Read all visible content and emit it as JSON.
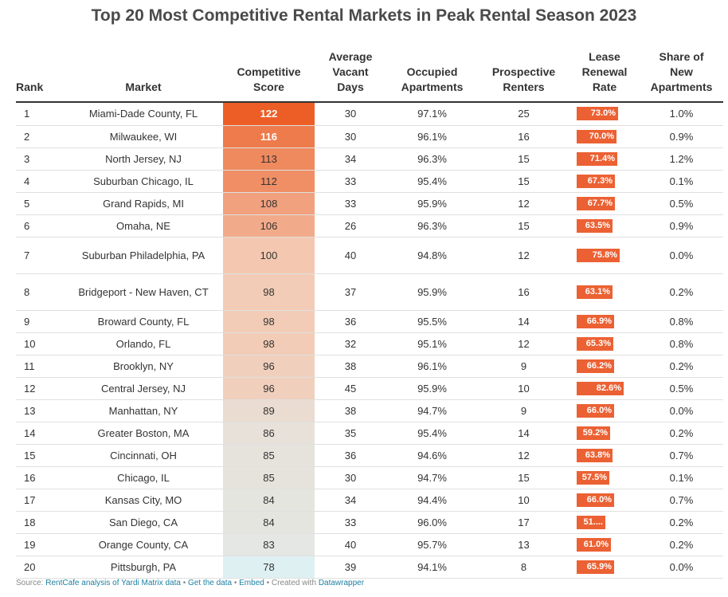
{
  "title": "Top 20 Most Competitive Rental Markets in Peak Rental Season 2023",
  "columns": {
    "rank": "Rank",
    "market": "Market",
    "score": [
      "Competitive",
      "Score"
    ],
    "vacant": [
      "Average",
      "Vacant",
      "Days"
    ],
    "occupied": [
      "Occupied",
      "Apartments"
    ],
    "renters": [
      "Prospective",
      "Renters"
    ],
    "renewal": [
      "Lease",
      "Renewal",
      "Rate"
    ],
    "share": [
      "Share of",
      "New",
      "Apartments"
    ]
  },
  "colors": {
    "renewal_bar": "#ec6133",
    "score_high": "#ec5e26",
    "score_low": "#dff0f2"
  },
  "chart_data": {
    "type": "table",
    "title": "Top 20 Most Competitive Rental Markets in Peak Rental Season 2023",
    "rows": [
      {
        "rank": "1",
        "market": "Miami-Dade County, FL",
        "score": 122,
        "vacant_days": "30",
        "occupied": "97.1%",
        "renters": "25",
        "renewal": 73.0,
        "renewal_label": "73.0%",
        "share": "1.0%"
      },
      {
        "rank": "2",
        "market": "Milwaukee, WI",
        "score": 116,
        "vacant_days": "30",
        "occupied": "96.1%",
        "renters": "16",
        "renewal": 70.0,
        "renewal_label": "70.0%",
        "share": "0.9%"
      },
      {
        "rank": "3",
        "market": "North Jersey, NJ",
        "score": 113,
        "vacant_days": "34",
        "occupied": "96.3%",
        "renters": "15",
        "renewal": 71.4,
        "renewal_label": "71.4%",
        "share": "1.2%"
      },
      {
        "rank": "4",
        "market": "Suburban Chicago, IL",
        "score": 112,
        "vacant_days": "33",
        "occupied": "95.4%",
        "renters": "15",
        "renewal": 67.3,
        "renewal_label": "67.3%",
        "share": "0.1%"
      },
      {
        "rank": "5",
        "market": "Grand Rapids, MI",
        "score": 108,
        "vacant_days": "33",
        "occupied": "95.9%",
        "renters": "12",
        "renewal": 67.7,
        "renewal_label": "67.7%",
        "share": "0.5%"
      },
      {
        "rank": "6",
        "market": "Omaha, NE",
        "score": 106,
        "vacant_days": "26",
        "occupied": "96.3%",
        "renters": "15",
        "renewal": 63.5,
        "renewal_label": "63.5%",
        "share": "0.9%"
      },
      {
        "rank": "7",
        "market": "Suburban Philadelphia, PA",
        "score": 100,
        "vacant_days": "40",
        "occupied": "94.8%",
        "renters": "12",
        "renewal": 75.8,
        "renewal_label": "75.8%",
        "share": "0.0%"
      },
      {
        "rank": "8",
        "market": "Bridgeport - New Haven, CT",
        "score": 98,
        "vacant_days": "37",
        "occupied": "95.9%",
        "renters": "16",
        "renewal": 63.1,
        "renewal_label": "63.1%",
        "share": "0.2%"
      },
      {
        "rank": "9",
        "market": "Broward County, FL",
        "score": 98,
        "vacant_days": "36",
        "occupied": "95.5%",
        "renters": "14",
        "renewal": 66.9,
        "renewal_label": "66.9%",
        "share": "0.8%"
      },
      {
        "rank": "10",
        "market": "Orlando, FL",
        "score": 98,
        "vacant_days": "32",
        "occupied": "95.1%",
        "renters": "12",
        "renewal": 65.3,
        "renewal_label": "65.3%",
        "share": "0.8%"
      },
      {
        "rank": "11",
        "market": "Brooklyn, NY",
        "score": 96,
        "vacant_days": "38",
        "occupied": "96.1%",
        "renters": "9",
        "renewal": 66.2,
        "renewal_label": "66.2%",
        "share": "0.2%"
      },
      {
        "rank": "12",
        "market": "Central Jersey, NJ",
        "score": 96,
        "vacant_days": "45",
        "occupied": "95.9%",
        "renters": "10",
        "renewal": 82.6,
        "renewal_label": "82.6%",
        "share": "0.5%"
      },
      {
        "rank": "13",
        "market": "Manhattan, NY",
        "score": 89,
        "vacant_days": "38",
        "occupied": "94.7%",
        "renters": "9",
        "renewal": 66.0,
        "renewal_label": "66.0%",
        "share": "0.0%"
      },
      {
        "rank": "14",
        "market": "Greater Boston, MA",
        "score": 86,
        "vacant_days": "35",
        "occupied": "95.4%",
        "renters": "14",
        "renewal": 59.2,
        "renewal_label": "59.2%",
        "share": "0.2%"
      },
      {
        "rank": "15",
        "market": "Cincinnati, OH",
        "score": 85,
        "vacant_days": "36",
        "occupied": "94.6%",
        "renters": "12",
        "renewal": 63.8,
        "renewal_label": "63.8%",
        "share": "0.7%"
      },
      {
        "rank": "16",
        "market": "Chicago, IL",
        "score": 85,
        "vacant_days": "30",
        "occupied": "94.7%",
        "renters": "15",
        "renewal": 57.5,
        "renewal_label": "57.5%",
        "share": "0.1%"
      },
      {
        "rank": "17",
        "market": "Kansas City, MO",
        "score": 84,
        "vacant_days": "34",
        "occupied": "94.4%",
        "renters": "10",
        "renewal": 66.0,
        "renewal_label": "66.0%",
        "share": "0.7%"
      },
      {
        "rank": "18",
        "market": "San Diego, CA",
        "score": 84,
        "vacant_days": "33",
        "occupied": "96.0%",
        "renters": "17",
        "renewal": 51.0,
        "renewal_label": "51....",
        "share": "0.2%"
      },
      {
        "rank": "19",
        "market": "Orange County, CA",
        "score": 83,
        "vacant_days": "40",
        "occupied": "95.7%",
        "renters": "13",
        "renewal": 61.0,
        "renewal_label": "61.0%",
        "share": "0.2%"
      },
      {
        "rank": "20",
        "market": "Pittsburgh, PA",
        "score": 78,
        "vacant_days": "39",
        "occupied": "94.1%",
        "renters": "8",
        "renewal": 65.9,
        "renewal_label": "65.9%",
        "share": "0.0%"
      }
    ]
  },
  "footer": {
    "source_prefix": "Source: ",
    "source_link": "RentCafe analysis of Yardi Matrix data",
    "sep1": " • ",
    "get_data": "Get the data",
    "sep2": " • ",
    "embed": "Embed",
    "created": " • Created with ",
    "datawrapper": "Datawrapper"
  }
}
